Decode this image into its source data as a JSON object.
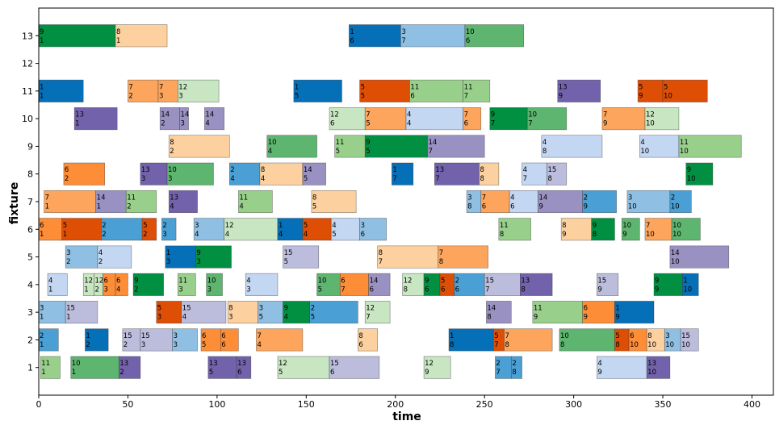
{
  "chart_data": {
    "type": "gantt",
    "xlabel": "time",
    "ylabel": "fixture",
    "xlim": [
      0,
      412
    ],
    "ylim": [
      0,
      14
    ],
    "x_ticks": [
      0,
      50,
      100,
      150,
      200,
      250,
      300,
      350,
      400
    ],
    "y_ticks": [
      1,
      2,
      3,
      4,
      5,
      6,
      7,
      8,
      9,
      10,
      11,
      12,
      13
    ],
    "colors": {
      "1": "#0570b8",
      "2": "#4aa0d4",
      "3": "#8fbfe2",
      "4": "#c3d6f2",
      "5": "#de4e04",
      "6": "#fd8d36",
      "7": "#fda55c",
      "8": "#fdd19f",
      "9": "#019042",
      "10": "#5db56f",
      "11": "#98d08b",
      "12": "#c7e6c1",
      "13": "#7262ac",
      "14": "#9a91c3",
      "15": "#bcbddc"
    },
    "tasks": [
      {
        "fixture": 1,
        "start": 1,
        "end": 12,
        "job": 11,
        "op": 1
      },
      {
        "fixture": 1,
        "start": 18,
        "end": 45,
        "job": 10,
        "op": 1
      },
      {
        "fixture": 1,
        "start": 45,
        "end": 57,
        "job": 13,
        "op": 2
      },
      {
        "fixture": 1,
        "start": 95,
        "end": 111,
        "job": 13,
        "op": 5
      },
      {
        "fixture": 1,
        "start": 111,
        "end": 119,
        "job": 13,
        "op": 6
      },
      {
        "fixture": 1,
        "start": 134,
        "end": 163,
        "job": 12,
        "op": 5
      },
      {
        "fixture": 1,
        "start": 163,
        "end": 191,
        "job": 15,
        "op": 6
      },
      {
        "fixture": 1,
        "start": 216,
        "end": 231,
        "job": 12,
        "op": 9
      },
      {
        "fixture": 1,
        "start": 256,
        "end": 265,
        "job": 2,
        "op": 7
      },
      {
        "fixture": 1,
        "start": 265,
        "end": 271,
        "job": 2,
        "op": 8
      },
      {
        "fixture": 1,
        "start": 313,
        "end": 341,
        "job": 4,
        "op": 9
      },
      {
        "fixture": 1,
        "start": 341,
        "end": 354,
        "job": 13,
        "op": 10
      },
      {
        "fixture": 2,
        "start": 0,
        "end": 11,
        "job": 2,
        "op": 1
      },
      {
        "fixture": 2,
        "start": 26,
        "end": 39,
        "job": 1,
        "op": 2
      },
      {
        "fixture": 2,
        "start": 47,
        "end": 57,
        "job": 15,
        "op": 2
      },
      {
        "fixture": 2,
        "start": 57,
        "end": 75,
        "job": 15,
        "op": 3
      },
      {
        "fixture": 2,
        "start": 75,
        "end": 89,
        "job": 3,
        "op": 3
      },
      {
        "fixture": 2,
        "start": 91,
        "end": 102,
        "job": 6,
        "op": 5
      },
      {
        "fixture": 2,
        "start": 102,
        "end": 112,
        "job": 6,
        "op": 6
      },
      {
        "fixture": 2,
        "start": 122,
        "end": 148,
        "job": 7,
        "op": 4
      },
      {
        "fixture": 2,
        "start": 179,
        "end": 190,
        "job": 8,
        "op": 6
      },
      {
        "fixture": 2,
        "start": 230,
        "end": 255,
        "job": 1,
        "op": 8
      },
      {
        "fixture": 2,
        "start": 255,
        "end": 261,
        "job": 5,
        "op": 7
      },
      {
        "fixture": 2,
        "start": 261,
        "end": 288,
        "job": 7,
        "op": 8
      },
      {
        "fixture": 2,
        "start": 292,
        "end": 323,
        "job": 10,
        "op": 8
      },
      {
        "fixture": 2,
        "start": 323,
        "end": 331,
        "job": 5,
        "op": 8
      },
      {
        "fixture": 2,
        "start": 331,
        "end": 341,
        "job": 6,
        "op": 10
      },
      {
        "fixture": 2,
        "start": 341,
        "end": 351,
        "job": 8,
        "op": 10
      },
      {
        "fixture": 2,
        "start": 351,
        "end": 360,
        "job": 3,
        "op": 10
      },
      {
        "fixture": 2,
        "start": 360,
        "end": 370,
        "job": 15,
        "op": 10
      },
      {
        "fixture": 3,
        "start": 0,
        "end": 15,
        "job": 3,
        "op": 1
      },
      {
        "fixture": 3,
        "start": 15,
        "end": 33,
        "job": 15,
        "op": 1
      },
      {
        "fixture": 3,
        "start": 66,
        "end": 80,
        "job": 5,
        "op": 3
      },
      {
        "fixture": 3,
        "start": 80,
        "end": 105,
        "job": 15,
        "op": 4
      },
      {
        "fixture": 3,
        "start": 106,
        "end": 123,
        "job": 8,
        "op": 3
      },
      {
        "fixture": 3,
        "start": 123,
        "end": 137,
        "job": 3,
        "op": 5
      },
      {
        "fixture": 3,
        "start": 137,
        "end": 152,
        "job": 9,
        "op": 4
      },
      {
        "fixture": 3,
        "start": 152,
        "end": 179,
        "job": 2,
        "op": 5
      },
      {
        "fixture": 3,
        "start": 183,
        "end": 197,
        "job": 12,
        "op": 7
      },
      {
        "fixture": 3,
        "start": 251,
        "end": 265,
        "job": 14,
        "op": 8
      },
      {
        "fixture": 3,
        "start": 277,
        "end": 305,
        "job": 11,
        "op": 9
      },
      {
        "fixture": 3,
        "start": 305,
        "end": 323,
        "job": 6,
        "op": 9
      },
      {
        "fixture": 3,
        "start": 323,
        "end": 345,
        "job": 1,
        "op": 9
      },
      {
        "fixture": 4,
        "start": 5,
        "end": 16,
        "job": 4,
        "op": 1
      },
      {
        "fixture": 4,
        "start": 25,
        "end": 31,
        "job": 12,
        "op": 1
      },
      {
        "fixture": 4,
        "start": 31,
        "end": 36,
        "job": 12,
        "op": 2
      },
      {
        "fixture": 4,
        "start": 36,
        "end": 43,
        "job": 6,
        "op": 3
      },
      {
        "fixture": 4,
        "start": 43,
        "end": 50,
        "job": 6,
        "op": 4
      },
      {
        "fixture": 4,
        "start": 53,
        "end": 70,
        "job": 9,
        "op": 2
      },
      {
        "fixture": 4,
        "start": 78,
        "end": 88,
        "job": 11,
        "op": 3
      },
      {
        "fixture": 4,
        "start": 94,
        "end": 103,
        "job": 10,
        "op": 3
      },
      {
        "fixture": 4,
        "start": 116,
        "end": 134,
        "job": 4,
        "op": 3
      },
      {
        "fixture": 4,
        "start": 156,
        "end": 169,
        "job": 10,
        "op": 5
      },
      {
        "fixture": 4,
        "start": 169,
        "end": 185,
        "job": 6,
        "op": 7
      },
      {
        "fixture": 4,
        "start": 185,
        "end": 197,
        "job": 14,
        "op": 6
      },
      {
        "fixture": 4,
        "start": 204,
        "end": 216,
        "job": 12,
        "op": 8
      },
      {
        "fixture": 4,
        "start": 216,
        "end": 225,
        "job": 9,
        "op": 6
      },
      {
        "fixture": 4,
        "start": 225,
        "end": 233,
        "job": 5,
        "op": 6
      },
      {
        "fixture": 4,
        "start": 233,
        "end": 250,
        "job": 2,
        "op": 6
      },
      {
        "fixture": 4,
        "start": 250,
        "end": 270,
        "job": 15,
        "op": 7
      },
      {
        "fixture": 4,
        "start": 270,
        "end": 288,
        "job": 13,
        "op": 8
      },
      {
        "fixture": 4,
        "start": 313,
        "end": 325,
        "job": 15,
        "op": 9
      },
      {
        "fixture": 4,
        "start": 345,
        "end": 361,
        "job": 9,
        "op": 9
      },
      {
        "fixture": 4,
        "start": 361,
        "end": 370,
        "job": 1,
        "op": 10
      },
      {
        "fixture": 5,
        "start": 15,
        "end": 33,
        "job": 3,
        "op": 2
      },
      {
        "fixture": 5,
        "start": 33,
        "end": 52,
        "job": 4,
        "op": 2
      },
      {
        "fixture": 5,
        "start": 71,
        "end": 88,
        "job": 1,
        "op": 3
      },
      {
        "fixture": 5,
        "start": 88,
        "end": 108,
        "job": 9,
        "op": 3
      },
      {
        "fixture": 5,
        "start": 137,
        "end": 157,
        "job": 15,
        "op": 5
      },
      {
        "fixture": 5,
        "start": 190,
        "end": 224,
        "job": 8,
        "op": 7
      },
      {
        "fixture": 5,
        "start": 224,
        "end": 252,
        "job": 7,
        "op": 8
      },
      {
        "fixture": 5,
        "start": 354,
        "end": 387,
        "job": 14,
        "op": 10
      },
      {
        "fixture": 6,
        "start": 0,
        "end": 13,
        "job": 6,
        "op": 1
      },
      {
        "fixture": 6,
        "start": 13,
        "end": 35,
        "job": 5,
        "op": 1
      },
      {
        "fixture": 6,
        "start": 35,
        "end": 58,
        "job": 2,
        "op": 2
      },
      {
        "fixture": 6,
        "start": 58,
        "end": 66,
        "job": 5,
        "op": 2
      },
      {
        "fixture": 6,
        "start": 69,
        "end": 77,
        "job": 2,
        "op": 3
      },
      {
        "fixture": 6,
        "start": 87,
        "end": 104,
        "job": 3,
        "op": 4
      },
      {
        "fixture": 6,
        "start": 104,
        "end": 134,
        "job": 12,
        "op": 4
      },
      {
        "fixture": 6,
        "start": 134,
        "end": 148,
        "job": 1,
        "op": 4
      },
      {
        "fixture": 6,
        "start": 148,
        "end": 164,
        "job": 5,
        "op": 4
      },
      {
        "fixture": 6,
        "start": 164,
        "end": 180,
        "job": 4,
        "op": 5
      },
      {
        "fixture": 6,
        "start": 180,
        "end": 195,
        "job": 3,
        "op": 6
      },
      {
        "fixture": 6,
        "start": 258,
        "end": 276,
        "job": 11,
        "op": 8
      },
      {
        "fixture": 6,
        "start": 293,
        "end": 310,
        "job": 8,
        "op": 9
      },
      {
        "fixture": 6,
        "start": 310,
        "end": 323,
        "job": 9,
        "op": 8
      },
      {
        "fixture": 6,
        "start": 327,
        "end": 337,
        "job": 10,
        "op": 9
      },
      {
        "fixture": 6,
        "start": 340,
        "end": 355,
        "job": 7,
        "op": 10
      },
      {
        "fixture": 6,
        "start": 355,
        "end": 371,
        "job": 10,
        "op": 10
      },
      {
        "fixture": 7,
        "start": 3,
        "end": 32,
        "job": 7,
        "op": 1
      },
      {
        "fixture": 7,
        "start": 32,
        "end": 49,
        "job": 14,
        "op": 1
      },
      {
        "fixture": 7,
        "start": 49,
        "end": 66,
        "job": 11,
        "op": 2
      },
      {
        "fixture": 7,
        "start": 73,
        "end": 89,
        "job": 13,
        "op": 4
      },
      {
        "fixture": 7,
        "start": 112,
        "end": 131,
        "job": 11,
        "op": 4
      },
      {
        "fixture": 7,
        "start": 153,
        "end": 178,
        "job": 8,
        "op": 5
      },
      {
        "fixture": 7,
        "start": 240,
        "end": 248,
        "job": 3,
        "op": 8
      },
      {
        "fixture": 7,
        "start": 248,
        "end": 264,
        "job": 7,
        "op": 6
      },
      {
        "fixture": 7,
        "start": 264,
        "end": 280,
        "job": 4,
        "op": 6
      },
      {
        "fixture": 7,
        "start": 280,
        "end": 305,
        "job": 14,
        "op": 9
      },
      {
        "fixture": 7,
        "start": 305,
        "end": 324,
        "job": 2,
        "op": 9
      },
      {
        "fixture": 7,
        "start": 330,
        "end": 354,
        "job": 3,
        "op": 10
      },
      {
        "fixture": 7,
        "start": 354,
        "end": 366,
        "job": 2,
        "op": 10
      },
      {
        "fixture": 8,
        "start": 14,
        "end": 37,
        "job": 6,
        "op": 2
      },
      {
        "fixture": 8,
        "start": 57,
        "end": 72,
        "job": 13,
        "op": 3
      },
      {
        "fixture": 8,
        "start": 72,
        "end": 98,
        "job": 10,
        "op": 3
      },
      {
        "fixture": 8,
        "start": 107,
        "end": 124,
        "job": 2,
        "op": 4
      },
      {
        "fixture": 8,
        "start": 124,
        "end": 148,
        "job": 8,
        "op": 4
      },
      {
        "fixture": 8,
        "start": 148,
        "end": 161,
        "job": 14,
        "op": 5
      },
      {
        "fixture": 8,
        "start": 198,
        "end": 210,
        "job": 1,
        "op": 7
      },
      {
        "fixture": 8,
        "start": 222,
        "end": 247,
        "job": 13,
        "op": 7
      },
      {
        "fixture": 8,
        "start": 247,
        "end": 258,
        "job": 8,
        "op": 8
      },
      {
        "fixture": 8,
        "start": 271,
        "end": 285,
        "job": 4,
        "op": 7
      },
      {
        "fixture": 8,
        "start": 285,
        "end": 296,
        "job": 15,
        "op": 8
      },
      {
        "fixture": 8,
        "start": 363,
        "end": 378,
        "job": 9,
        "op": 10
      },
      {
        "fixture": 9,
        "start": 73,
        "end": 107,
        "job": 8,
        "op": 2
      },
      {
        "fixture": 9,
        "start": 128,
        "end": 156,
        "job": 10,
        "op": 4
      },
      {
        "fixture": 9,
        "start": 166,
        "end": 183,
        "job": 11,
        "op": 5
      },
      {
        "fixture": 9,
        "start": 183,
        "end": 218,
        "job": 9,
        "op": 5
      },
      {
        "fixture": 9,
        "start": 218,
        "end": 250,
        "job": 14,
        "op": 7
      },
      {
        "fixture": 9,
        "start": 282,
        "end": 316,
        "job": 4,
        "op": 8
      },
      {
        "fixture": 9,
        "start": 337,
        "end": 359,
        "job": 4,
        "op": 10
      },
      {
        "fixture": 9,
        "start": 359,
        "end": 394,
        "job": 11,
        "op": 10
      },
      {
        "fixture": 10,
        "start": 20,
        "end": 44,
        "job": 13,
        "op": 1
      },
      {
        "fixture": 10,
        "start": 68,
        "end": 79,
        "job": 14,
        "op": 2
      },
      {
        "fixture": 10,
        "start": 79,
        "end": 84,
        "job": 14,
        "op": 3
      },
      {
        "fixture": 10,
        "start": 93,
        "end": 104,
        "job": 14,
        "op": 4
      },
      {
        "fixture": 10,
        "start": 163,
        "end": 183,
        "job": 12,
        "op": 6
      },
      {
        "fixture": 10,
        "start": 183,
        "end": 206,
        "job": 7,
        "op": 5
      },
      {
        "fixture": 10,
        "start": 206,
        "end": 238,
        "job": 4,
        "op": 4
      },
      {
        "fixture": 10,
        "start": 238,
        "end": 248,
        "job": 7,
        "op": 6
      },
      {
        "fixture": 10,
        "start": 253,
        "end": 274,
        "job": 9,
        "op": 7
      },
      {
        "fixture": 10,
        "start": 274,
        "end": 296,
        "job": 10,
        "op": 7
      },
      {
        "fixture": 10,
        "start": 316,
        "end": 340,
        "job": 7,
        "op": 9
      },
      {
        "fixture": 10,
        "start": 340,
        "end": 359,
        "job": 12,
        "op": 10
      },
      {
        "fixture": 11,
        "start": 0,
        "end": 25,
        "job": 1,
        "op": 1
      },
      {
        "fixture": 11,
        "start": 50,
        "end": 67,
        "job": 7,
        "op": 2
      },
      {
        "fixture": 11,
        "start": 67,
        "end": 78,
        "job": 7,
        "op": 3
      },
      {
        "fixture": 11,
        "start": 78,
        "end": 101,
        "job": 12,
        "op": 3
      },
      {
        "fixture": 11,
        "start": 143,
        "end": 170,
        "job": 1,
        "op": 5
      },
      {
        "fixture": 11,
        "start": 180,
        "end": 208,
        "job": 5,
        "op": 5
      },
      {
        "fixture": 11,
        "start": 208,
        "end": 238,
        "job": 11,
        "op": 6
      },
      {
        "fixture": 11,
        "start": 238,
        "end": 253,
        "job": 11,
        "op": 7
      },
      {
        "fixture": 11,
        "start": 291,
        "end": 315,
        "job": 13,
        "op": 9
      },
      {
        "fixture": 11,
        "start": 336,
        "end": 350,
        "job": 5,
        "op": 9
      },
      {
        "fixture": 11,
        "start": 350,
        "end": 375,
        "job": 5,
        "op": 10
      },
      {
        "fixture": 13,
        "start": 0,
        "end": 43,
        "job": 9,
        "op": 1
      },
      {
        "fixture": 13,
        "start": 43,
        "end": 72,
        "job": 8,
        "op": 1
      },
      {
        "fixture": 13,
        "start": 174,
        "end": 203,
        "job": 1,
        "op": 6
      },
      {
        "fixture": 13,
        "start": 203,
        "end": 239,
        "job": 3,
        "op": 7
      },
      {
        "fixture": 13,
        "start": 239,
        "end": 272,
        "job": 10,
        "op": 6
      }
    ]
  }
}
